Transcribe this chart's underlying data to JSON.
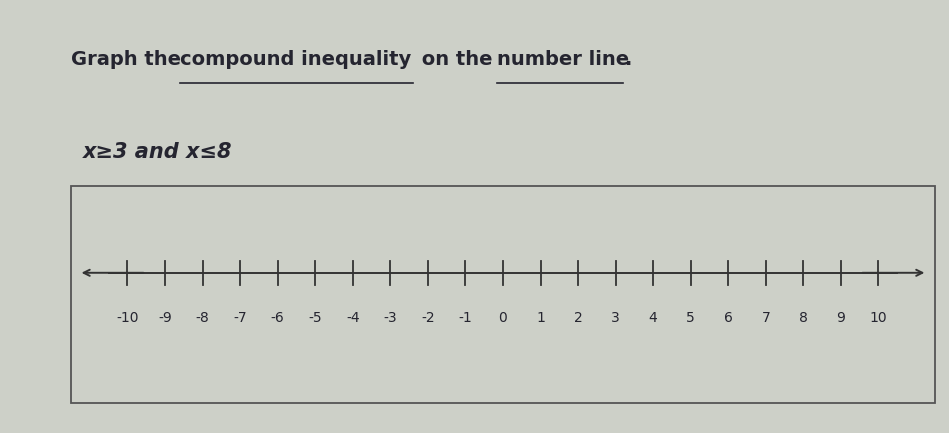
{
  "title_plain1": "Graph the ",
  "title_underline1": "compound inequality",
  "title_plain2": " on the ",
  "title_underline2": "number line",
  "title_end": ".",
  "inequality_text": "x≥3 and x≤8",
  "tick_values": [
    -10,
    -9,
    -8,
    -7,
    -6,
    -5,
    -4,
    -3,
    -2,
    -1,
    0,
    1,
    2,
    3,
    4,
    5,
    6,
    7,
    8,
    9,
    10
  ],
  "background_color": "#cdd0c8",
  "box_background": "#d6dbd2",
  "text_color": "#252530",
  "title_fontsize": 14,
  "inequality_fontsize": 15,
  "tick_fontsize": 10,
  "figure_bg": "#cdd0c8"
}
